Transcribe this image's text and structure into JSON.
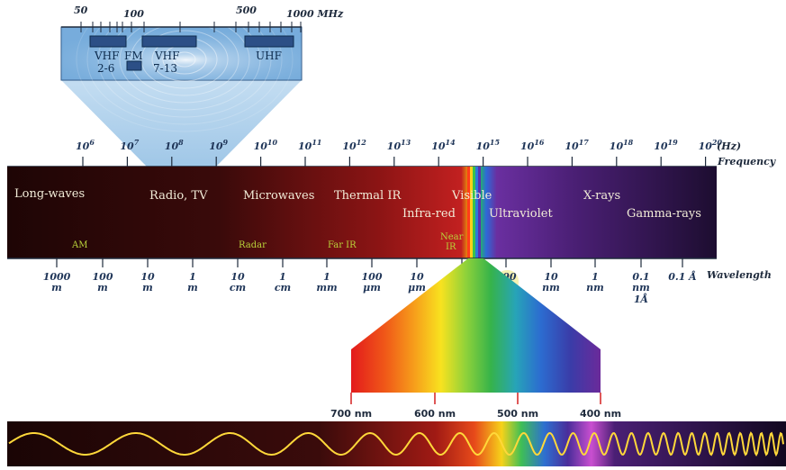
{
  "top_scale": {
    "ticks": [
      "50",
      "100",
      "500",
      "1000 MHz"
    ],
    "bands": [
      {
        "label": "VHF",
        "sub": "2-6"
      },
      {
        "label": "FM",
        "sub": ""
      },
      {
        "label": "VHF",
        "sub": "7-13"
      },
      {
        "label": "UHF",
        "sub": ""
      }
    ]
  },
  "frequency": {
    "exponents": [
      "6",
      "7",
      "8",
      "9",
      "10",
      "11",
      "12",
      "13",
      "14",
      "15",
      "16",
      "17",
      "18",
      "19",
      "20"
    ],
    "base": "10",
    "unit": "(Hz)",
    "axis_label": "Frequency"
  },
  "spectrum": {
    "regions": [
      "Long-waves",
      "Radio, TV",
      "Microwaves",
      "Thermal IR",
      "Infra-red",
      "Visible",
      "Ultraviolet",
      "X-rays",
      "Gamma-rays"
    ],
    "sub_regions": [
      "AM",
      "Radar",
      "Far IR",
      "Near",
      "IR"
    ]
  },
  "wavelength": {
    "ticks": [
      {
        "v": "1000",
        "u": "m"
      },
      {
        "v": "100",
        "u": "m"
      },
      {
        "v": "10",
        "u": "m"
      },
      {
        "v": "1",
        "u": "m"
      },
      {
        "v": "10",
        "u": "cm"
      },
      {
        "v": "1",
        "u": "cm"
      },
      {
        "v": "1",
        "u": "mm"
      },
      {
        "v": "100",
        "u": "μm"
      },
      {
        "v": "10",
        "u": "μm"
      },
      {
        "v": "1",
        "u": "μm"
      },
      {
        "v": "100",
        "u": "nm"
      },
      {
        "v": "10",
        "u": "nm"
      },
      {
        "v": "1",
        "u": "nm"
      },
      {
        "v": "0.1",
        "u": "nm",
        "extra": "1Å"
      },
      {
        "v": "0.1 Å",
        "u": ""
      }
    ],
    "axis_label": "Wavelength"
  },
  "visible_scale": [
    "700 nm",
    "600 nm",
    "500 nm",
    "400 nm"
  ],
  "colors": {
    "band_dark": "#2a0a0a",
    "band_red": "#a01818",
    "band_purple": "#5a1f80",
    "accent_green": "#b9d23a",
    "scale_blue": "#1f3558"
  }
}
